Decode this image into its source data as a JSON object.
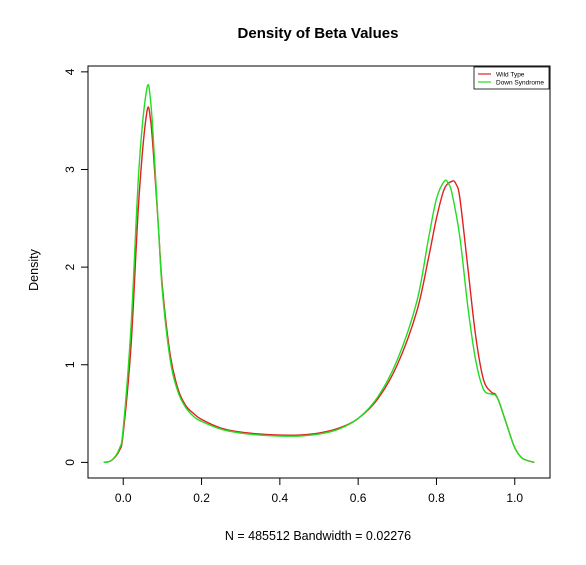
{
  "chart_data": {
    "type": "line",
    "title": "Density of Beta Values",
    "xlabel": "N = 485512   Bandwidth = 0.02276",
    "ylabel": "Density",
    "xlim": [
      -0.09,
      1.09
    ],
    "ylim": [
      -0.16,
      4.06
    ],
    "xticks": [
      "0.0",
      "0.2",
      "0.4",
      "0.6",
      "0.8",
      "1.0"
    ],
    "xtick_values": [
      0.0,
      0.2,
      0.4,
      0.6,
      0.8,
      1.0
    ],
    "yticks": [
      "0",
      "1",
      "2",
      "3",
      "4"
    ],
    "ytick_values": [
      0,
      1,
      2,
      3,
      4
    ],
    "grid": false,
    "legend_position": "top-right",
    "series": [
      {
        "name": "Wild Type",
        "color": "#e02020",
        "points": [
          [
            -0.05,
            0.0
          ],
          [
            -0.03,
            0.02
          ],
          [
            -0.01,
            0.12
          ],
          [
            0.0,
            0.3
          ],
          [
            0.02,
            1.2
          ],
          [
            0.04,
            2.7
          ],
          [
            0.06,
            3.58
          ],
          [
            0.07,
            3.5
          ],
          [
            0.08,
            3.0
          ],
          [
            0.09,
            2.4
          ],
          [
            0.1,
            1.8
          ],
          [
            0.12,
            1.1
          ],
          [
            0.14,
            0.75
          ],
          [
            0.16,
            0.58
          ],
          [
            0.18,
            0.5
          ],
          [
            0.2,
            0.44
          ],
          [
            0.25,
            0.35
          ],
          [
            0.3,
            0.31
          ],
          [
            0.35,
            0.29
          ],
          [
            0.4,
            0.28
          ],
          [
            0.45,
            0.28
          ],
          [
            0.5,
            0.3
          ],
          [
            0.55,
            0.35
          ],
          [
            0.6,
            0.45
          ],
          [
            0.65,
            0.65
          ],
          [
            0.7,
            1.0
          ],
          [
            0.75,
            1.55
          ],
          [
            0.78,
            2.1
          ],
          [
            0.8,
            2.5
          ],
          [
            0.82,
            2.8
          ],
          [
            0.84,
            2.88
          ],
          [
            0.85,
            2.85
          ],
          [
            0.86,
            2.7
          ],
          [
            0.88,
            2.0
          ],
          [
            0.9,
            1.3
          ],
          [
            0.92,
            0.85
          ],
          [
            0.94,
            0.72
          ],
          [
            0.95,
            0.7
          ],
          [
            0.96,
            0.62
          ],
          [
            0.98,
            0.38
          ],
          [
            1.0,
            0.15
          ],
          [
            1.02,
            0.04
          ],
          [
            1.05,
            0.0
          ]
        ]
      },
      {
        "name": "Down Syndrome",
        "color": "#22dd22",
        "points": [
          [
            -0.05,
            0.0
          ],
          [
            -0.03,
            0.02
          ],
          [
            -0.01,
            0.14
          ],
          [
            0.0,
            0.35
          ],
          [
            0.02,
            1.4
          ],
          [
            0.04,
            3.0
          ],
          [
            0.06,
            3.82
          ],
          [
            0.07,
            3.7
          ],
          [
            0.08,
            3.1
          ],
          [
            0.09,
            2.4
          ],
          [
            0.1,
            1.75
          ],
          [
            0.12,
            1.05
          ],
          [
            0.14,
            0.72
          ],
          [
            0.16,
            0.56
          ],
          [
            0.18,
            0.47
          ],
          [
            0.2,
            0.42
          ],
          [
            0.25,
            0.34
          ],
          [
            0.3,
            0.3
          ],
          [
            0.35,
            0.28
          ],
          [
            0.4,
            0.27
          ],
          [
            0.45,
            0.27
          ],
          [
            0.5,
            0.29
          ],
          [
            0.55,
            0.34
          ],
          [
            0.6,
            0.45
          ],
          [
            0.65,
            0.67
          ],
          [
            0.7,
            1.05
          ],
          [
            0.75,
            1.65
          ],
          [
            0.78,
            2.3
          ],
          [
            0.8,
            2.7
          ],
          [
            0.82,
            2.88
          ],
          [
            0.83,
            2.86
          ],
          [
            0.84,
            2.75
          ],
          [
            0.86,
            2.3
          ],
          [
            0.88,
            1.6
          ],
          [
            0.9,
            1.05
          ],
          [
            0.92,
            0.75
          ],
          [
            0.94,
            0.7
          ],
          [
            0.95,
            0.69
          ],
          [
            0.96,
            0.62
          ],
          [
            0.98,
            0.38
          ],
          [
            1.0,
            0.15
          ],
          [
            1.02,
            0.04
          ],
          [
            1.05,
            0.0
          ]
        ]
      }
    ]
  }
}
